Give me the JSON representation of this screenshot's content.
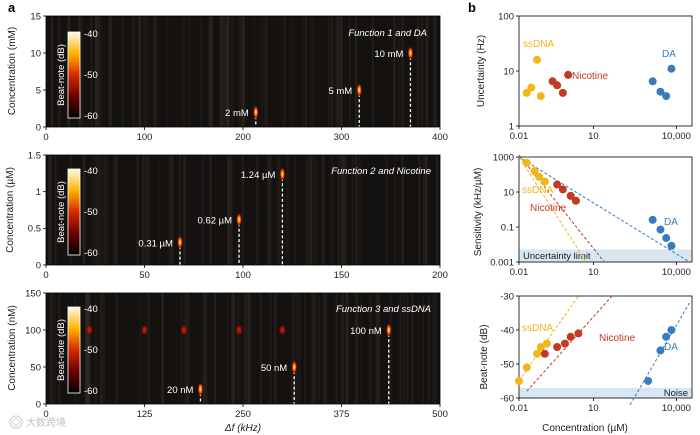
{
  "panel_letters": {
    "a": "a",
    "b": "b"
  },
  "watermark": "大数跨境",
  "chart_data": [
    {
      "type": "heatmap",
      "title": "Function 1 and DA",
      "xlabel": "",
      "ylabel": "Concentration (mM)",
      "xlim": [
        0,
        400
      ],
      "ylim": [
        0,
        15
      ],
      "xticks": [
        "0",
        "100",
        "200",
        "300",
        "400"
      ],
      "yticks": [
        "0",
        "5",
        "10",
        "15"
      ],
      "colorbar": {
        "label": "Beat-note (dB)",
        "ticks": [
          "-40",
          "-50",
          "-60"
        ],
        "range": [
          -60,
          -40
        ]
      },
      "peaks": [
        {
          "label": "2 mM",
          "x": 213,
          "y": 2
        },
        {
          "label": "5 mM",
          "x": 318,
          "y": 5
        },
        {
          "label": "10 mM",
          "x": 370,
          "y": 10
        }
      ]
    },
    {
      "type": "heatmap",
      "title": "Function 2 and Nicotine",
      "xlabel": "",
      "ylabel": "Concentration (µM)",
      "xlim": [
        0,
        200
      ],
      "ylim": [
        0,
        1.5
      ],
      "xticks": [
        "0",
        "50",
        "100",
        "150",
        "200"
      ],
      "yticks": [
        "0",
        "0.5",
        "1",
        "1.5"
      ],
      "colorbar": {
        "label": "Beat-note (dB)",
        "ticks": [
          "-40",
          "-50",
          "-60"
        ],
        "range": [
          -60,
          -40
        ]
      },
      "peaks": [
        {
          "label": "0.31 µM",
          "x": 68,
          "y": 0.31
        },
        {
          "label": "0.62 µM",
          "x": 98,
          "y": 0.62
        },
        {
          "label": "1.24 µM",
          "x": 120,
          "y": 1.24
        }
      ]
    },
    {
      "type": "heatmap",
      "title": "Function 3 and ssDNA",
      "xlabel": "Δf (kHz)",
      "ylabel": "Concentration (nM)",
      "xlim": [
        0,
        500
      ],
      "ylim": [
        0,
        150
      ],
      "xticks": [
        "0",
        "125",
        "250",
        "375",
        "500"
      ],
      "yticks": [
        "0",
        "50",
        "100",
        "150"
      ],
      "colorbar": {
        "label": "Beat-note (dB)",
        "ticks": [
          "-40",
          "-50",
          "-60"
        ],
        "range": [
          -60,
          -40
        ]
      },
      "peaks": [
        {
          "label": "20 nM",
          "x": 196,
          "y": 20
        },
        {
          "label": "50 nM",
          "x": 315,
          "y": 50
        },
        {
          "label": "100 nM",
          "x": 435,
          "y": 100
        }
      ],
      "spurious_spots": [
        {
          "x": 55,
          "y": 100
        },
        {
          "x": 125,
          "y": 100
        },
        {
          "x": 175,
          "y": 100
        },
        {
          "x": 245,
          "y": 100
        },
        {
          "x": 300,
          "y": 100
        }
      ]
    },
    {
      "type": "scatter",
      "title": "",
      "xlabel": "",
      "ylabel": "Uncertainty (Hz)",
      "xscale": "log",
      "yscale": "log",
      "xlim": [
        0.01,
        50000
      ],
      "ylim": [
        1,
        100
      ],
      "xticks": [
        "0.01",
        "10",
        "10,000"
      ],
      "yticks": [
        "1",
        "10",
        "100"
      ],
      "series": [
        {
          "name": "ssDNA",
          "color": "#f2b51a",
          "x": [
            0.02,
            0.03,
            0.05,
            0.07
          ],
          "y": [
            4,
            5,
            16,
            3.5
          ]
        },
        {
          "name": "Nicotine",
          "color": "#c23a22",
          "x": [
            0.2,
            0.3,
            0.5,
            0.8
          ],
          "y": [
            6.5,
            5.5,
            4,
            8.5
          ]
        },
        {
          "name": "DA",
          "color": "#3a7bbf",
          "x": [
            1500,
            3000,
            5000,
            8000
          ],
          "y": [
            6.5,
            4.2,
            3.5,
            11
          ]
        }
      ]
    },
    {
      "type": "scatter",
      "title": "",
      "xlabel": "",
      "ylabel": "Sensitivity (kHz/µM)",
      "xscale": "log",
      "yscale": "log",
      "xlim": [
        0.01,
        50000
      ],
      "ylim": [
        0.001,
        3000
      ],
      "xticks": [
        "0.01",
        "10",
        "10,000"
      ],
      "yticks": [
        "0.001",
        "0.1",
        "10",
        "1000"
      ],
      "annotation": "Uncertainty limit",
      "uncertainty_limit": [
        0.001,
        0.006
      ],
      "series": [
        {
          "name": "ssDNA",
          "color": "#f2b51a",
          "x": [
            0.02,
            0.04,
            0.06,
            0.1
          ],
          "y": [
            1300,
            400,
            180,
            90
          ]
        },
        {
          "name": "Nicotine",
          "color": "#c23a22",
          "x": [
            0.3,
            0.5,
            1,
            1.6
          ],
          "y": [
            60,
            30,
            12,
            6
          ]
        },
        {
          "name": "DA",
          "color": "#3a7bbf",
          "x": [
            1500,
            3000,
            5000,
            8000
          ],
          "y": [
            0.4,
            0.1,
            0.03,
            0.01
          ]
        }
      ],
      "fits": [
        {
          "series": "ssDNA",
          "x": [
            0.01,
            4
          ],
          "y": [
            3000,
            0.001
          ]
        },
        {
          "series": "Nicotine",
          "x": [
            0.01,
            20
          ],
          "y": [
            4000,
            0.001
          ]
        },
        {
          "series": "DA",
          "x": [
            0.01,
            40000
          ],
          "y": [
            3000,
            0.001
          ]
        }
      ]
    },
    {
      "type": "scatter",
      "title": "",
      "xlabel": "Concentration (µM)",
      "ylabel": "Beat-note (dB)",
      "xscale": "log",
      "xlim": [
        0.01,
        50000
      ],
      "ylim": [
        -60,
        -30
      ],
      "xticks": [
        "0.01",
        "10",
        "10,000"
      ],
      "yticks": [
        "-60",
        "-50",
        "-40",
        "-30"
      ],
      "annotation": "Noise",
      "noise_level": [
        -60,
        -57
      ],
      "series": [
        {
          "name": "ssDNA",
          "color": "#f2b51a",
          "x": [
            0.01,
            0.02,
            0.05,
            0.07,
            0.12
          ],
          "y": [
            -55,
            -51,
            -47,
            -45,
            -44
          ]
        },
        {
          "name": "Nicotine",
          "color": "#c23a22",
          "x": [
            0.1,
            0.3,
            0.6,
            1,
            2
          ],
          "y": [
            -47,
            -45,
            -44,
            -42,
            -41
          ]
        },
        {
          "name": "DA",
          "color": "#3a7bbf",
          "x": [
            1000,
            3000,
            5000,
            8000
          ],
          "y": [
            -55,
            -46,
            -42,
            -40
          ]
        }
      ],
      "fits": [
        {
          "series": "ssDNA",
          "x": [
            0.01,
            2
          ],
          "y": [
            -55,
            -30
          ]
        },
        {
          "series": "Nicotine",
          "x": [
            0.02,
            40
          ],
          "y": [
            -58,
            -30
          ]
        },
        {
          "series": "DA",
          "x": [
            200,
            40000
          ],
          "y": [
            -62,
            -32
          ]
        }
      ]
    }
  ]
}
